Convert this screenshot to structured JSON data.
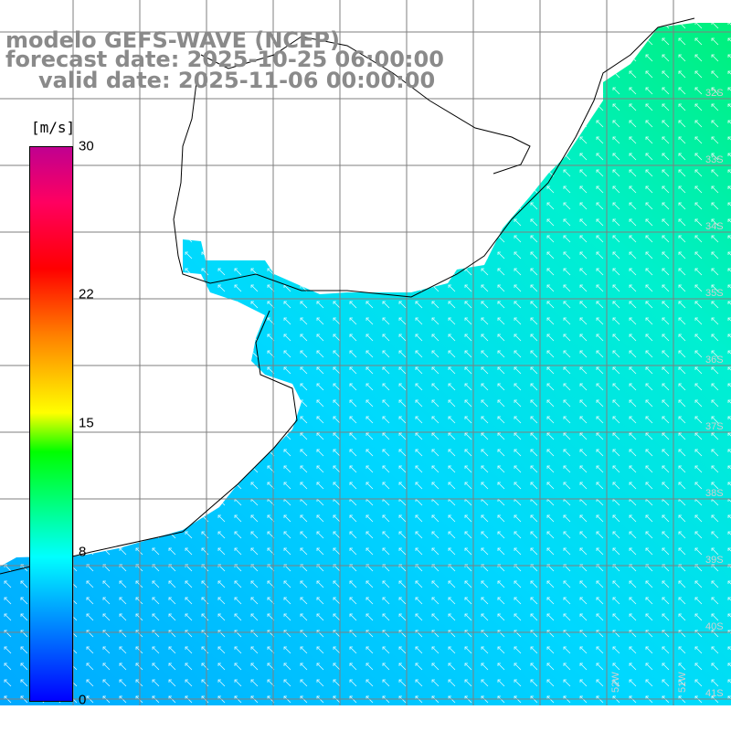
{
  "title": {
    "line1": "modelo GEFS-WAVE (NCEP)",
    "line2": "forecast date: 2025-10-25 06:00:00",
    "line3": "valid date: 2025-11-06 00:00:00"
  },
  "colorbar": {
    "units": "[m/s]",
    "ticks": [
      {
        "label": "30",
        "value": 30
      },
      {
        "label": "22",
        "value": 22
      },
      {
        "label": "15",
        "value": 15
      },
      {
        "label": "8",
        "value": 8
      },
      {
        "label": "0",
        "value": 0
      }
    ],
    "min": 0,
    "max": 30
  },
  "lat_labels": [
    "32S",
    "33S",
    "34S",
    "35S",
    "36S",
    "37S",
    "38S",
    "39S",
    "40S",
    "41S"
  ],
  "lon_labels": [
    "52W",
    "51W"
  ],
  "colors": {
    "land": "#ffffff",
    "coast": "#000000",
    "grid": "#7f7f7f",
    "ocean_low": "#00a8ff",
    "ocean_mid": "#00e8e8",
    "ocean_high": "#00f07a",
    "arrow": "#ffffff",
    "title": "#8a8a8a"
  }
}
